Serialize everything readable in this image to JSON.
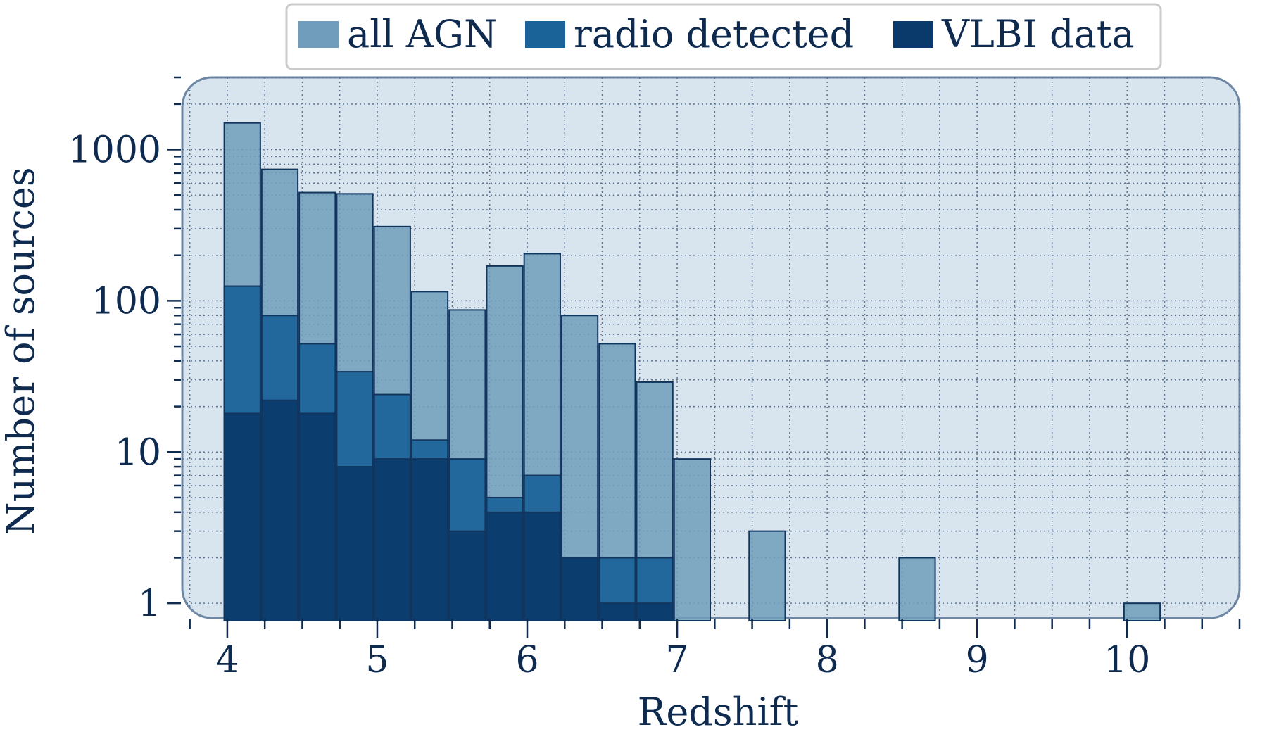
{
  "chart_data": {
    "type": "bar",
    "xlabel": "Redshift",
    "ylabel": "Number of sources",
    "x_scale": "linear",
    "y_scale": "log",
    "xlim": [
      3.7,
      10.75
    ],
    "ylim": [
      0.8,
      3000
    ],
    "x_ticks": [
      4,
      5,
      6,
      7,
      8,
      9,
      10
    ],
    "x_tick_labels": [
      "4",
      "5",
      "6",
      "7",
      "8",
      "9",
      "10"
    ],
    "y_ticks": [
      1,
      10,
      100,
      1000
    ],
    "y_tick_labels": [
      "1",
      "10",
      "100",
      "1000"
    ],
    "bin_width": 0.25,
    "grid": true,
    "legend_position": "top-center",
    "series": [
      {
        "name": "all AGN",
        "color": "#6f9dbb",
        "bins": [
          {
            "x": 4.1,
            "value": 1500
          },
          {
            "x": 4.35,
            "value": 740
          },
          {
            "x": 4.6,
            "value": 520
          },
          {
            "x": 4.85,
            "value": 510
          },
          {
            "x": 5.1,
            "value": 310
          },
          {
            "x": 5.35,
            "value": 115
          },
          {
            "x": 5.6,
            "value": 87
          },
          {
            "x": 5.85,
            "value": 170
          },
          {
            "x": 6.1,
            "value": 205
          },
          {
            "x": 6.35,
            "value": 80
          },
          {
            "x": 6.6,
            "value": 52
          },
          {
            "x": 6.85,
            "value": 29
          },
          {
            "x": 7.1,
            "value": 9
          },
          {
            "x": 7.6,
            "value": 3
          },
          {
            "x": 8.6,
            "value": 2
          },
          {
            "x": 10.1,
            "value": 1
          }
        ]
      },
      {
        "name": "radio detected",
        "color": "#1a6399",
        "bins": [
          {
            "x": 4.1,
            "value": 125
          },
          {
            "x": 4.35,
            "value": 80
          },
          {
            "x": 4.6,
            "value": 52
          },
          {
            "x": 4.85,
            "value": 34
          },
          {
            "x": 5.1,
            "value": 24
          },
          {
            "x": 5.35,
            "value": 12
          },
          {
            "x": 5.6,
            "value": 9
          },
          {
            "x": 5.85,
            "value": 5
          },
          {
            "x": 6.1,
            "value": 7
          },
          {
            "x": 6.35,
            "value": 2
          },
          {
            "x": 6.6,
            "value": 2
          },
          {
            "x": 6.85,
            "value": 2
          }
        ]
      },
      {
        "name": "VLBI data",
        "color": "#0a3a6b",
        "bins": [
          {
            "x": 4.1,
            "value": 18
          },
          {
            "x": 4.35,
            "value": 22
          },
          {
            "x": 4.6,
            "value": 18
          },
          {
            "x": 4.85,
            "value": 8
          },
          {
            "x": 5.1,
            "value": 9
          },
          {
            "x": 5.35,
            "value": 9
          },
          {
            "x": 5.6,
            "value": 3
          },
          {
            "x": 5.85,
            "value": 4
          },
          {
            "x": 6.1,
            "value": 4
          },
          {
            "x": 6.35,
            "value": 2
          },
          {
            "x": 6.6,
            "value": 1
          },
          {
            "x": 6.85,
            "value": 1
          }
        ]
      }
    ]
  }
}
